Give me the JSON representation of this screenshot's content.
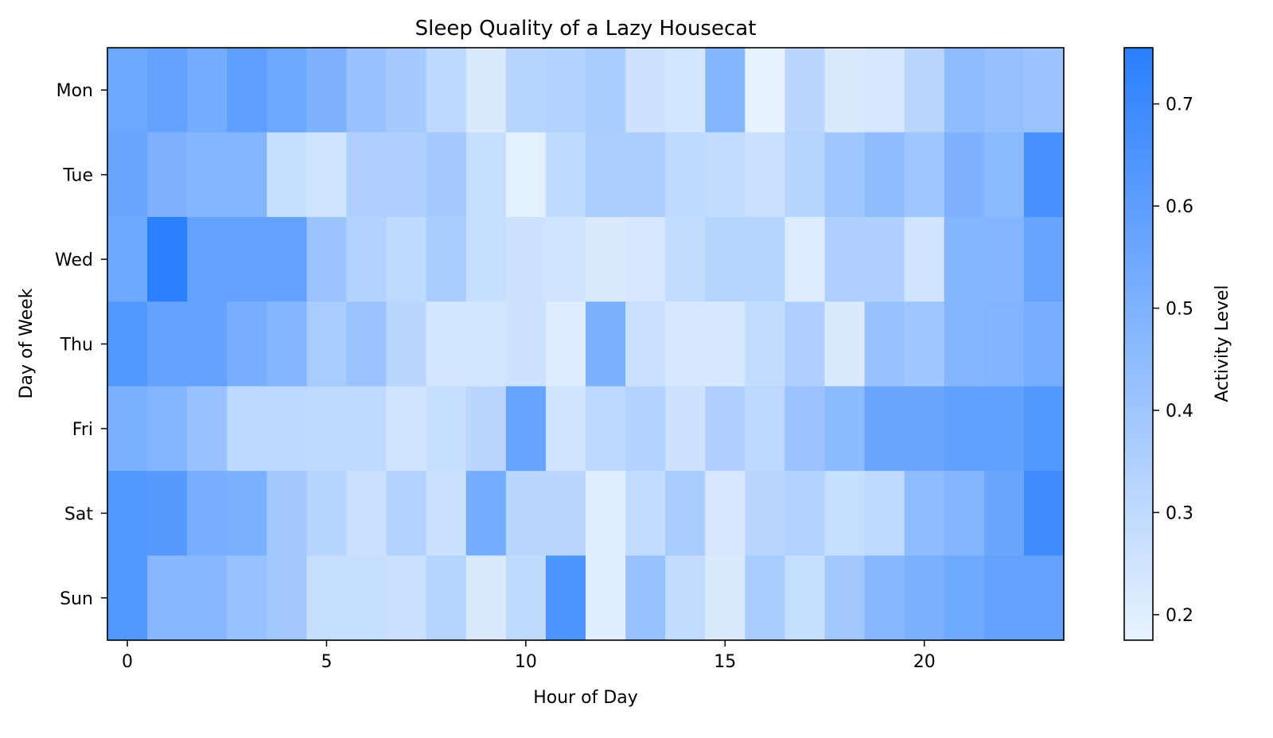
{
  "chart_data": {
    "type": "heatmap",
    "title": "Sleep Quality of a Lazy Housecat",
    "xlabel": "Hour of Day",
    "ylabel": "Day of Week",
    "colorbar_label": "Activity Level",
    "rows": [
      "Mon",
      "Tue",
      "Wed",
      "Thu",
      "Fri",
      "Sat",
      "Sun"
    ],
    "columns": [
      0,
      1,
      2,
      3,
      4,
      5,
      6,
      7,
      8,
      9,
      10,
      11,
      12,
      13,
      14,
      15,
      16,
      17,
      18,
      19,
      20,
      21,
      22,
      23
    ],
    "x_ticks": [
      0,
      5,
      10,
      15,
      20
    ],
    "colorbar_ticks": [
      0.2,
      0.3,
      0.4,
      0.5,
      0.6,
      0.7
    ],
    "vmin": 0.175,
    "vmax": 0.755,
    "color_low": "#e8f3ff",
    "color_high": "#2a7fff",
    "values": [
      [
        0.55,
        0.58,
        0.53,
        0.6,
        0.55,
        0.5,
        0.42,
        0.38,
        0.31,
        0.22,
        0.33,
        0.34,
        0.37,
        0.26,
        0.24,
        0.48,
        0.18,
        0.32,
        0.22,
        0.23,
        0.32,
        0.45,
        0.43,
        0.41
      ],
      [
        0.56,
        0.5,
        0.48,
        0.48,
        0.28,
        0.25,
        0.35,
        0.35,
        0.38,
        0.28,
        0.19,
        0.3,
        0.36,
        0.36,
        0.3,
        0.29,
        0.27,
        0.33,
        0.4,
        0.45,
        0.4,
        0.5,
        0.46,
        0.67
      ],
      [
        0.55,
        0.75,
        0.58,
        0.58,
        0.58,
        0.41,
        0.34,
        0.3,
        0.37,
        0.28,
        0.26,
        0.25,
        0.22,
        0.23,
        0.29,
        0.33,
        0.33,
        0.21,
        0.35,
        0.35,
        0.25,
        0.48,
        0.48,
        0.57
      ],
      [
        0.63,
        0.58,
        0.58,
        0.52,
        0.48,
        0.37,
        0.41,
        0.32,
        0.24,
        0.24,
        0.26,
        0.21,
        0.51,
        0.27,
        0.23,
        0.23,
        0.29,
        0.35,
        0.22,
        0.42,
        0.4,
        0.48,
        0.49,
        0.52
      ],
      [
        0.51,
        0.48,
        0.42,
        0.31,
        0.31,
        0.3,
        0.3,
        0.25,
        0.28,
        0.32,
        0.57,
        0.25,
        0.31,
        0.34,
        0.26,
        0.35,
        0.31,
        0.41,
        0.46,
        0.56,
        0.56,
        0.59,
        0.59,
        0.63
      ],
      [
        0.63,
        0.62,
        0.52,
        0.51,
        0.39,
        0.33,
        0.27,
        0.34,
        0.27,
        0.53,
        0.32,
        0.32,
        0.2,
        0.29,
        0.37,
        0.23,
        0.32,
        0.34,
        0.28,
        0.3,
        0.45,
        0.48,
        0.56,
        0.69
      ],
      [
        0.63,
        0.47,
        0.47,
        0.42,
        0.39,
        0.28,
        0.28,
        0.27,
        0.33,
        0.22,
        0.3,
        0.65,
        0.2,
        0.42,
        0.29,
        0.22,
        0.37,
        0.28,
        0.39,
        0.47,
        0.51,
        0.54,
        0.58,
        0.58
      ]
    ]
  }
}
